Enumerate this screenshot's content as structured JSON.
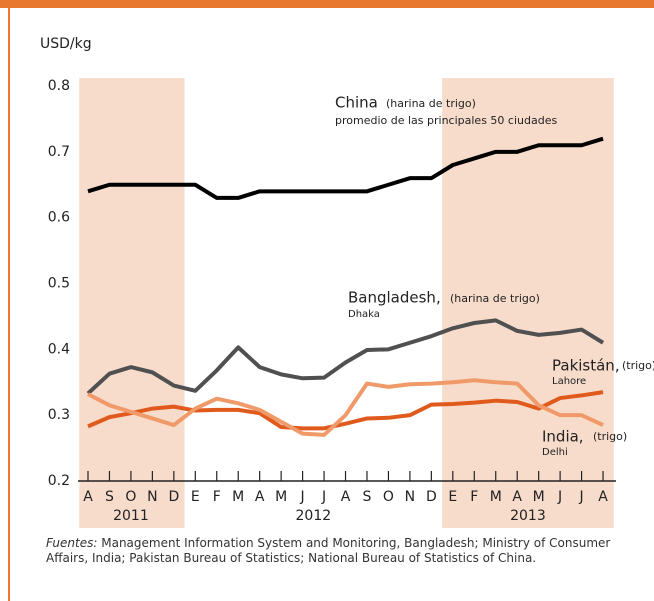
{
  "chart_data": {
    "type": "line",
    "y_axis_label": "USD/kg",
    "categories": [
      "A",
      "S",
      "O",
      "N",
      "D",
      "E",
      "F",
      "M",
      "A",
      "M",
      "J",
      "J",
      "A",
      "S",
      "O",
      "N",
      "D",
      "E",
      "F",
      "M",
      "A",
      "M",
      "J",
      "J",
      "A"
    ],
    "year_groups": [
      {
        "label": "2011",
        "count": 5
      },
      {
        "label": "2012",
        "count": 12
      },
      {
        "label": "2013",
        "count": 8
      }
    ],
    "ylim": [
      0.2,
      0.8
    ],
    "yticks": [
      0.2,
      0.3,
      0.4,
      0.5,
      0.6,
      0.7,
      0.8
    ],
    "series": [
      {
        "name": "China",
        "color": "#000000",
        "values": [
          0.64,
          0.65,
          0.65,
          0.65,
          0.65,
          0.65,
          0.63,
          0.63,
          0.64,
          0.64,
          0.64,
          0.64,
          0.64,
          0.64,
          0.65,
          0.66,
          0.66,
          0.68,
          0.69,
          0.7,
          0.7,
          0.71,
          0.71,
          0.71,
          0.72
        ]
      },
      {
        "name": "Bangladesh,",
        "color": "#505050",
        "values": [
          0.333,
          0.363,
          0.373,
          0.365,
          0.345,
          0.337,
          0.368,
          0.403,
          0.373,
          0.362,
          0.356,
          0.357,
          0.38,
          0.399,
          0.4,
          0.41,
          0.42,
          0.432,
          0.44,
          0.444,
          0.428,
          0.422,
          0.425,
          0.43,
          0.41
        ]
      },
      {
        "name": "Pakistán,",
        "color": "#e05a1e",
        "values": [
          0.283,
          0.297,
          0.303,
          0.31,
          0.313,
          0.307,
          0.308,
          0.308,
          0.303,
          0.282,
          0.28,
          0.28,
          0.287,
          0.295,
          0.296,
          0.3,
          0.316,
          0.317,
          0.319,
          0.322,
          0.32,
          0.31,
          0.326,
          0.33,
          0.335
        ]
      },
      {
        "name": "India,",
        "color": "#f09a6a",
        "values": [
          0.332,
          0.315,
          0.305,
          0.295,
          0.285,
          0.31,
          0.325,
          0.318,
          0.308,
          0.29,
          0.272,
          0.27,
          0.3,
          0.348,
          0.343,
          0.347,
          0.348,
          0.35,
          0.353,
          0.35,
          0.348,
          0.315,
          0.3,
          0.3,
          0.285
        ]
      }
    ],
    "annotations": {
      "china_sub": "(harina de trigo)",
      "china_note": "promedio de las principales 50 ciudades",
      "bangladesh_sub": "(harina de trigo)",
      "bangladesh_city": "Dhaka",
      "pakistan_sub": "(trigo)",
      "pakistan_city": "Lahore",
      "india_sub": "(trigo)",
      "india_city": "Delhi"
    },
    "source_label": "Fuentes:",
    "source": "Management Information System and Monitoring, Bangladesh; Ministry of Consumer Affairs, India; Pakistan Bureau of Statistics; National Bureau of Statistics of China."
  }
}
